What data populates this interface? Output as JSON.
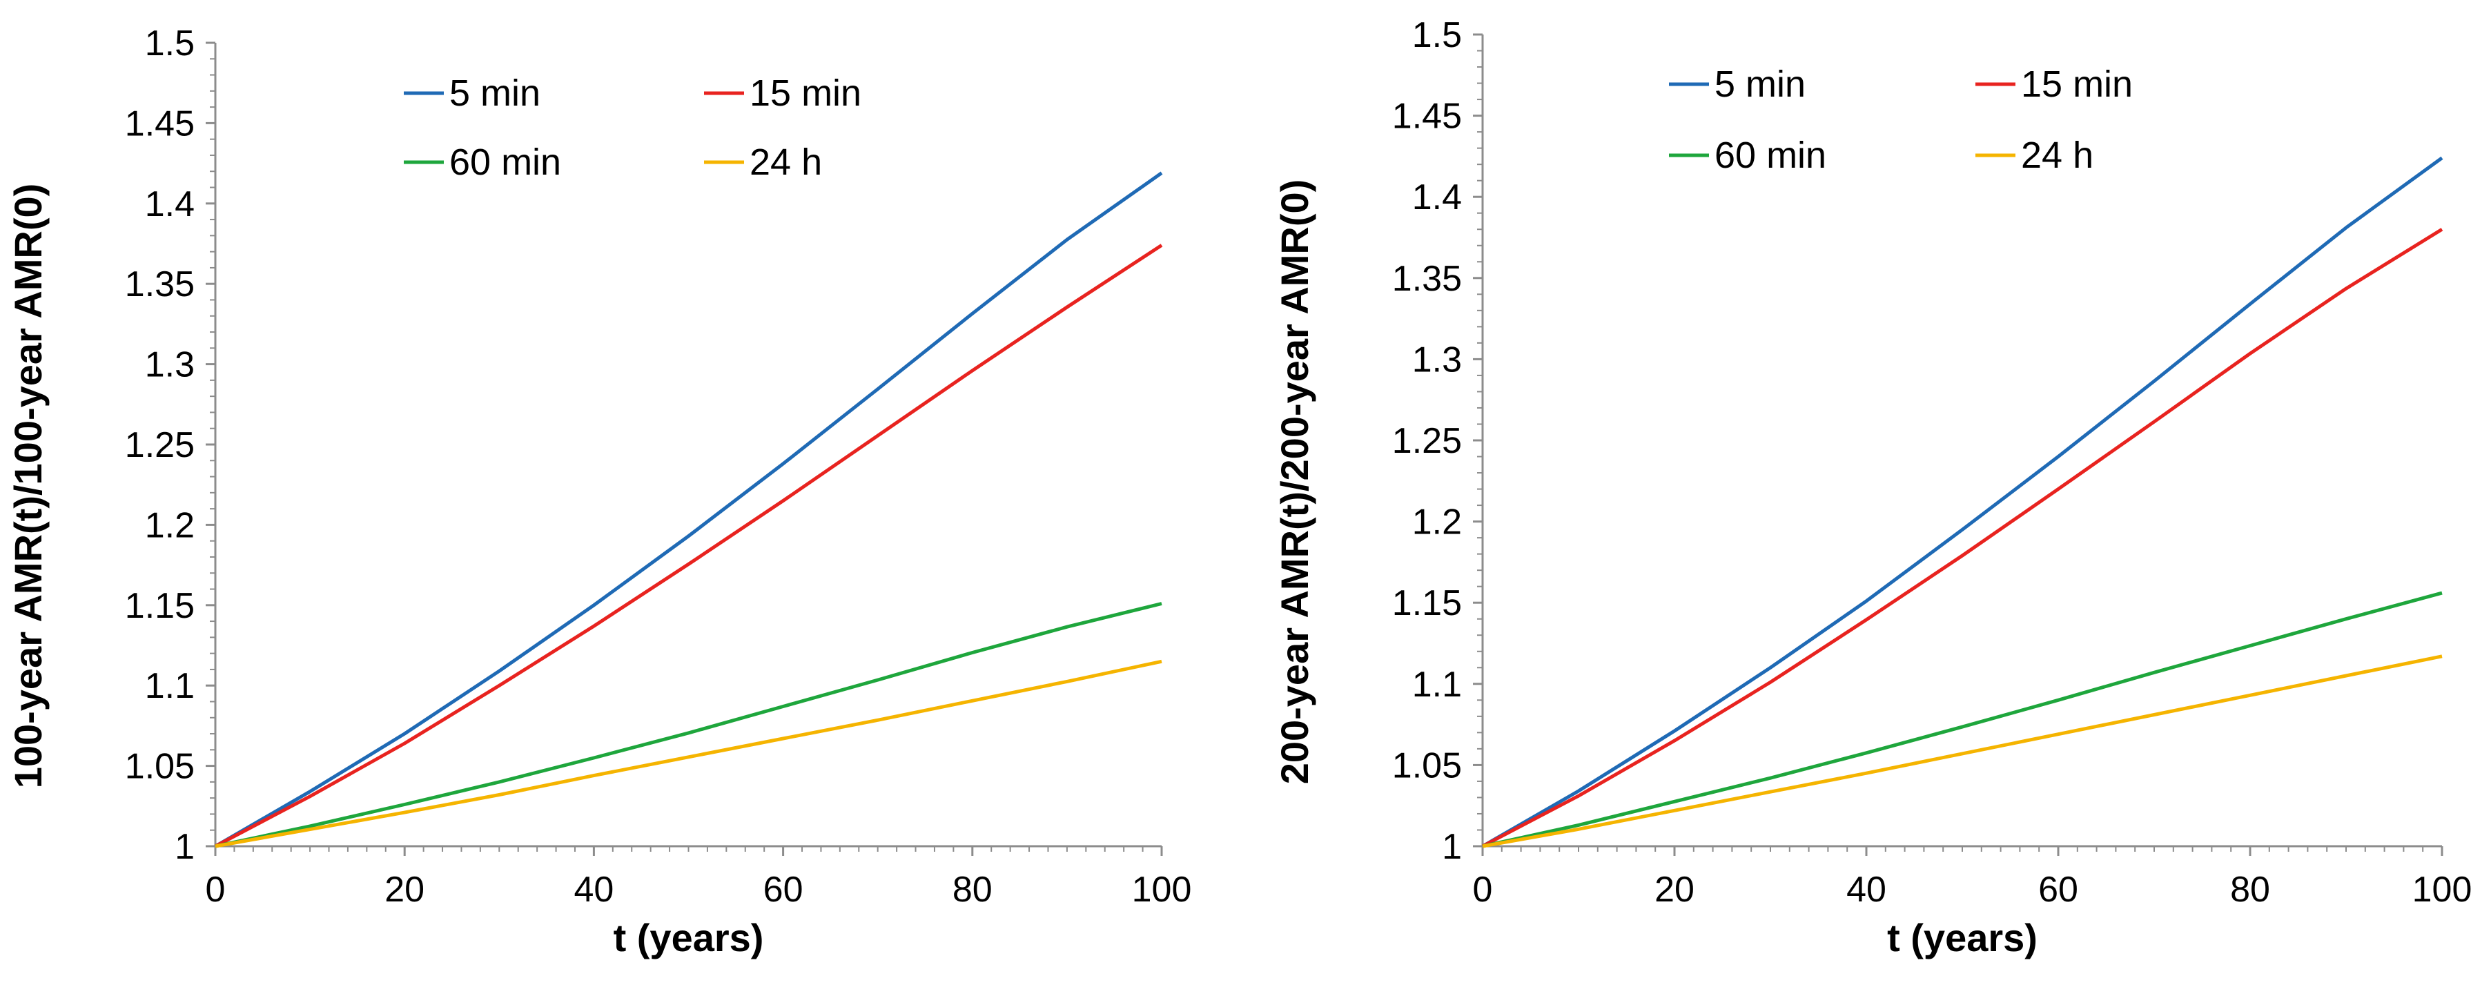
{
  "chart_data": [
    {
      "type": "line",
      "title": "",
      "xlabel": "t (years)",
      "ylabel": "100-year AMR(t)/100-year AMR(0)",
      "xlim": [
        0,
        100
      ],
      "ylim": [
        1,
        1.5
      ],
      "x_ticks": [
        "0",
        "20",
        "40",
        "60",
        "80",
        "100"
      ],
      "y_ticks": [
        "1",
        "1.05",
        "1.1",
        "1.15",
        "1.2",
        "1.25",
        "1.3",
        "1.35",
        "1.4",
        "1.45",
        "1.5"
      ],
      "grid": false,
      "legend_position": "top-center",
      "x": [
        0,
        10,
        20,
        30,
        40,
        50,
        60,
        70,
        80,
        90,
        100
      ],
      "series": [
        {
          "name": "5 min",
          "color": "#1f6ab5",
          "values": [
            1,
            1.034,
            1.07,
            1.109,
            1.15,
            1.193,
            1.238,
            1.2845,
            1.3315,
            1.3775,
            1.419
          ]
        },
        {
          "name": "15 min",
          "color": "#e8231f",
          "values": [
            1,
            1.031,
            1.064,
            1.1,
            1.137,
            1.1755,
            1.215,
            1.2555,
            1.296,
            1.3355,
            1.374
          ]
        },
        {
          "name": "60 min",
          "color": "#1ea63c",
          "values": [
            1,
            1.0125,
            1.026,
            1.04,
            1.055,
            1.0705,
            1.087,
            1.1035,
            1.1205,
            1.1365,
            1.151
          ]
        },
        {
          "name": "24 h",
          "color": "#f5b400",
          "values": [
            1,
            1.0105,
            1.021,
            1.032,
            1.044,
            1.0555,
            1.067,
            1.0785,
            1.0905,
            1.1025,
            1.115
          ]
        }
      ]
    },
    {
      "type": "line",
      "title": "",
      "xlabel": "t (years)",
      "ylabel": "200-year AMR(t)/200-year AMR(0)",
      "xlim": [
        0,
        100
      ],
      "ylim": [
        1,
        1.5
      ],
      "x_ticks": [
        "0",
        "20",
        "40",
        "60",
        "80",
        "100"
      ],
      "y_ticks": [
        "1",
        "1.05",
        "1.1",
        "1.15",
        "1.2",
        "1.25",
        "1.3",
        "1.35",
        "1.4",
        "1.45",
        "1.5"
      ],
      "grid": false,
      "legend_position": "top-center",
      "x": [
        0,
        10,
        20,
        30,
        40,
        50,
        60,
        70,
        80,
        90,
        100
      ],
      "series": [
        {
          "name": "5 min",
          "color": "#1f6ab5",
          "values": [
            1,
            1.034,
            1.071,
            1.11,
            1.151,
            1.195,
            1.24,
            1.2865,
            1.334,
            1.381,
            1.424
          ]
        },
        {
          "name": "15 min",
          "color": "#e8231f",
          "values": [
            1,
            1.031,
            1.065,
            1.101,
            1.1395,
            1.179,
            1.22,
            1.2615,
            1.3035,
            1.3435,
            1.38
          ]
        },
        {
          "name": "60 min",
          "color": "#1ea63c",
          "values": [
            1,
            1.013,
            1.0275,
            1.042,
            1.0575,
            1.0735,
            1.09,
            1.107,
            1.1235,
            1.14,
            1.156
          ]
        },
        {
          "name": "24 h",
          "color": "#f5b400",
          "values": [
            1,
            1.0105,
            1.022,
            1.0335,
            1.045,
            1.057,
            1.069,
            1.081,
            1.093,
            1.105,
            1.117
          ]
        }
      ]
    }
  ]
}
